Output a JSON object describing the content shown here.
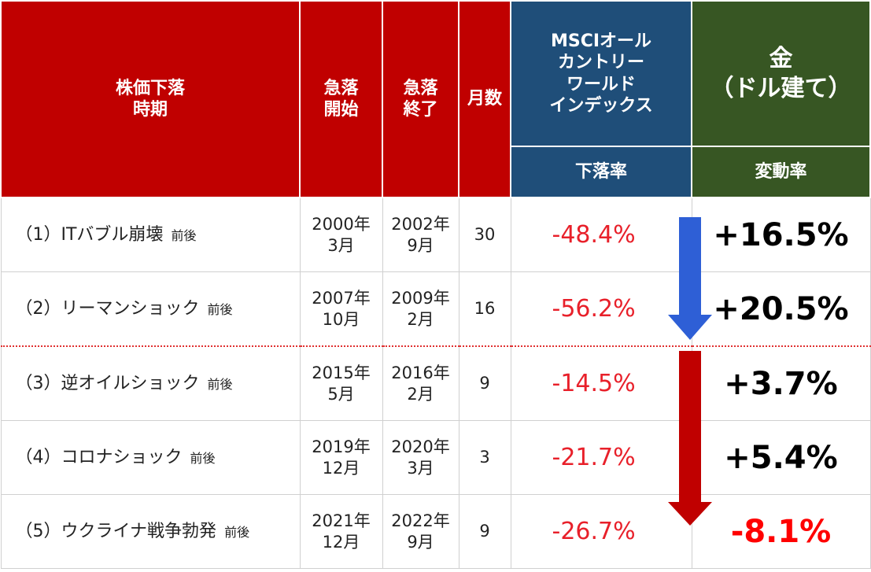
{
  "header": {
    "period": "株価下落\n時期",
    "start": "急落\n開始",
    "end": "急落\n終了",
    "months": "月数",
    "msci": "MSCIオール\nカントリー\nワールド\nインデックス",
    "msci_sub": "下落率",
    "gold": "金\n（ドル建て）",
    "gold_sub": "変動率"
  },
  "rows": [
    {
      "label": "（1）ITバブル崩壊",
      "note": "前後",
      "start": "2000年\n3月",
      "end": "2002年\n9月",
      "months": "30",
      "msci": "-48.4%",
      "gold": "+16.5%"
    },
    {
      "label": "（2）リーマンショック",
      "note": "前後",
      "start": "2007年\n10月",
      "end": "2009年\n2月",
      "months": "16",
      "msci": "-56.2%",
      "gold": "+20.5%"
    },
    {
      "label": "（3）逆オイルショック",
      "note": "前後",
      "start": "2015年\n5月",
      "end": "2016年\n2月",
      "months": "9",
      "msci": "-14.5%",
      "gold": "+3.7%"
    },
    {
      "label": "（4）コロナショック",
      "note": "前後",
      "start": "2019年\n12月",
      "end": "2020年\n3月",
      "months": "3",
      "msci": "-21.7%",
      "gold": "+5.4%"
    },
    {
      "label": "（5）ウクライナ戦争勃発",
      "note": "前後",
      "start": "2021年\n12月",
      "end": "2022年\n9月",
      "months": "9",
      "msci": "-26.7%",
      "gold": "-8.1%"
    }
  ]
}
